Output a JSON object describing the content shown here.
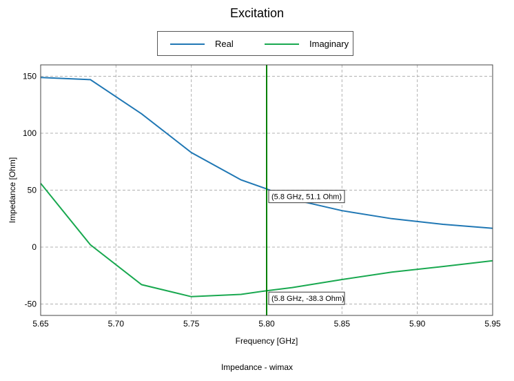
{
  "title": "Excitation",
  "footer": "Impedance - wimax",
  "legend": [
    {
      "label": "Real",
      "color": "#1f77b4"
    },
    {
      "label": "Imaginary",
      "color": "#18a84f"
    }
  ],
  "chart_data": {
    "type": "line",
    "xlabel": "Frequency [GHz]",
    "ylabel": "Impedance [Ohm]",
    "xlim": [
      5.65,
      5.95
    ],
    "ylim": [
      -60,
      160
    ],
    "xticks": [
      "5.65",
      "5.70",
      "5.75",
      "5.80",
      "5.85",
      "5.90",
      "5.95"
    ],
    "yticks": [
      "150",
      "100",
      "50",
      "0",
      "-50"
    ],
    "grid": true,
    "series": [
      {
        "name": "Real",
        "color": "#1f77b4",
        "x": [
          5.65,
          5.683,
          5.717,
          5.75,
          5.783,
          5.8,
          5.817,
          5.85,
          5.883,
          5.917,
          5.95
        ],
        "y": [
          149,
          147,
          117,
          83,
          59,
          51.1,
          42,
          32,
          25,
          20,
          16.5
        ]
      },
      {
        "name": "Imaginary",
        "color": "#18a84f",
        "x": [
          5.65,
          5.683,
          5.717,
          5.75,
          5.783,
          5.8,
          5.817,
          5.85,
          5.883,
          5.917,
          5.95
        ],
        "y": [
          56,
          2,
          -33,
          -43.5,
          -41.5,
          -38.3,
          -35.5,
          -28.5,
          -22,
          -17,
          -12
        ]
      }
    ],
    "marker": {
      "x": 5.8,
      "color": "#008000",
      "annotations": [
        {
          "text": "(5.8 GHz, 51.1 Ohm)",
          "y": 51.1
        },
        {
          "text": "(5.8 GHz, -38.3 Ohm)",
          "y": -38.3
        }
      ]
    }
  }
}
